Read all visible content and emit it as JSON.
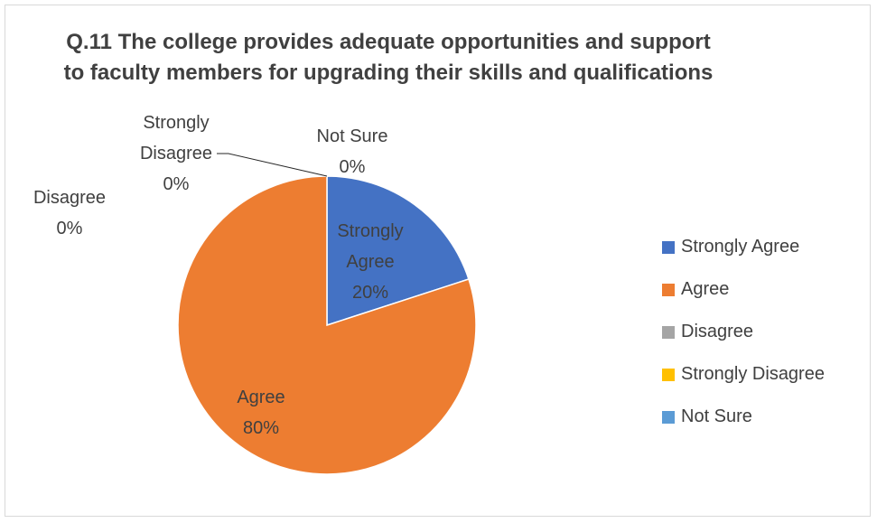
{
  "chart_data": {
    "type": "pie",
    "title": "Q.11 The college provides adequate opportunities and support to faculty members for upgrading their skills and qualifications",
    "categories": [
      "Strongly Agree",
      "Agree",
      "Disagree",
      "Strongly Disagree",
      "Not Sure"
    ],
    "values": [
      20,
      80,
      0,
      0,
      0
    ],
    "value_labels": [
      "20%",
      "80%",
      "0%",
      "0%",
      "0%"
    ],
    "colors": [
      "#4472C4",
      "#ED7D31",
      "#A5A5A5",
      "#FFC000",
      "#5B9BD5"
    ],
    "legend_position": "right"
  }
}
